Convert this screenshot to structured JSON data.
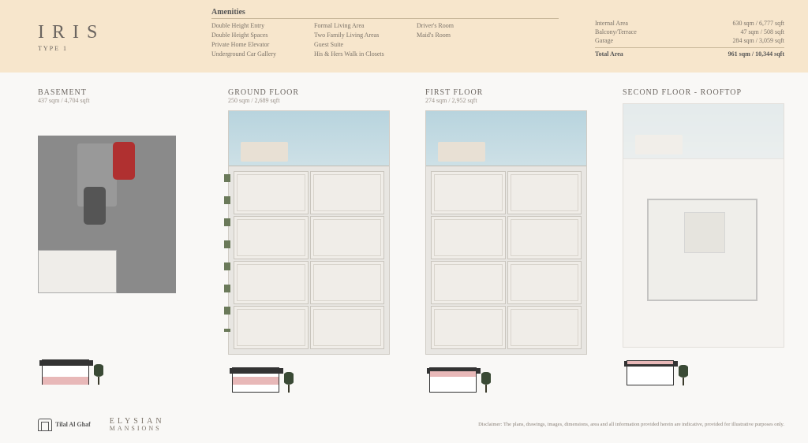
{
  "header": {
    "model": "IRIS",
    "type": "TYPE 1",
    "amenities_title": "Amenities",
    "amenities": {
      "col1": [
        "Double Height Entry",
        "Double Height Spaces",
        "Private Home Elevator",
        "Underground Car Gallery"
      ],
      "col2": [
        "Formal Living Area",
        "Two Family Living Areas",
        "Guest Suite",
        "His & Hers Walk in Closets"
      ],
      "col3": [
        "Driver's Room",
        "Maid's Room"
      ]
    },
    "areas": {
      "rows": [
        {
          "label": "Internal Area",
          "value": "630 sqm / 6,777 sqft"
        },
        {
          "label": "Balcony/Terrace",
          "value": "47 sqm / 508 sqft"
        },
        {
          "label": "Garage",
          "value": "284 sqm / 3,059 sqft"
        }
      ],
      "total": {
        "label": "Total Area",
        "value": "961 sqm / 10,344 sqft"
      }
    }
  },
  "floors": [
    {
      "name": "BASEMENT",
      "area": "437 sqm / 4,704 sqft"
    },
    {
      "name": "GROUND FLOOR",
      "area": "250 sqm / 2,689 sqft"
    },
    {
      "name": "FIRST FLOOR",
      "area": "274 sqm / 2,952 sqft"
    },
    {
      "name": "SECOND FLOOR - ROOFTOP",
      "area": ""
    }
  ],
  "footer": {
    "logo1": "Tilal Al Ghaf",
    "logo2a": "ELYSIAN",
    "logo2b": "MANSIONS",
    "disclaimer": "Disclaimer: The plans, drawings, images, dimensions, area and all information provided herein are indicative, provided for illustrative purposes only."
  },
  "colors": {
    "header_bg": "#f7e6cc",
    "page_bg": "#f9f8f6",
    "text": "#6b6560",
    "pool": "#b8d4de",
    "highlight": "#e8b8b8"
  }
}
